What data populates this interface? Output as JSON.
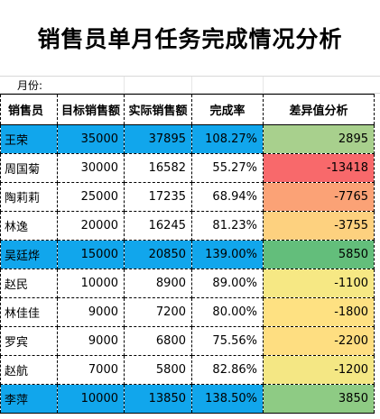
{
  "title": "销售员单月任务完成情况分析",
  "month_label": "月份:",
  "headers": [
    "销售员",
    "目标销售额",
    "实际销售额",
    "完成率",
    "差异值分析"
  ],
  "rows": [
    {
      "name": "王荣",
      "target": "35000",
      "actual": "37895",
      "rate": "108.27%",
      "diff": "2895",
      "highlight": true,
      "diff_color": "#a8d08d"
    },
    {
      "name": "周国菊",
      "target": "30000",
      "actual": "16582",
      "rate": "55.27%",
      "diff": "-13418",
      "highlight": false,
      "diff_color": "#f8696b"
    },
    {
      "name": "陶莉莉",
      "target": "25000",
      "actual": "17235",
      "rate": "68.94%",
      "diff": "-7765",
      "highlight": false,
      "diff_color": "#fba276"
    },
    {
      "name": "林逸",
      "target": "20000",
      "actual": "16245",
      "rate": "81.23%",
      "diff": "-3755",
      "highlight": false,
      "diff_color": "#fdd17f"
    },
    {
      "name": "吴廷烨",
      "target": "15000",
      "actual": "20850",
      "rate": "139.00%",
      "diff": "5850",
      "highlight": true,
      "diff_color": "#63be7b"
    },
    {
      "name": "赵民",
      "target": "10000",
      "actual": "8900",
      "rate": "89.00%",
      "diff": "-1100",
      "highlight": false,
      "diff_color": "#f6e884"
    },
    {
      "name": "林佳佳",
      "target": "9000",
      "actual": "7200",
      "rate": "80.00%",
      "diff": "-1800",
      "highlight": false,
      "diff_color": "#fee182"
    },
    {
      "name": "罗宾",
      "target": "9000",
      "actual": "6800",
      "rate": "75.56%",
      "diff": "-2200",
      "highlight": false,
      "diff_color": "#fede81"
    },
    {
      "name": "赵航",
      "target": "7000",
      "actual": "5800",
      "rate": "82.86%",
      "diff": "-1200",
      "highlight": false,
      "diff_color": "#f4e784"
    },
    {
      "name": "李萍",
      "target": "10000",
      "actual": "13850",
      "rate": "138.50%",
      "diff": "3850",
      "highlight": true,
      "diff_color": "#8ecb84"
    }
  ]
}
